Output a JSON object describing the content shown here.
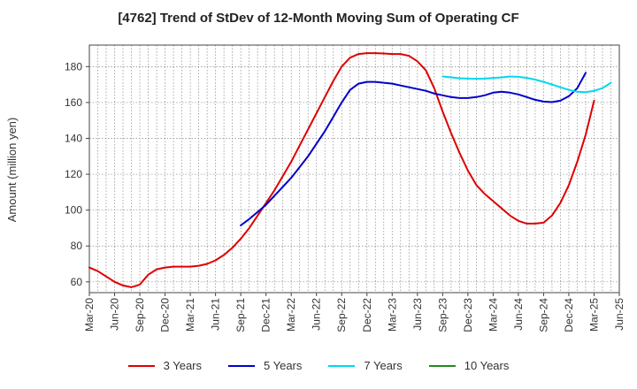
{
  "chart_data": {
    "type": "line",
    "title": "[4762]  Trend of StDev of 12-Month Moving Sum of Operating CF",
    "xlabel": "",
    "ylabel": "Amount (million yen)",
    "ylim": [
      54,
      192
    ],
    "yticks": [
      60,
      80,
      100,
      120,
      140,
      160,
      180
    ],
    "grid": true,
    "legend_position": "bottom",
    "x_tick_labels": [
      "Mar-20",
      "Jun-20",
      "Sep-20",
      "Dec-20",
      "Mar-21",
      "Jun-21",
      "Sep-21",
      "Dec-21",
      "Mar-22",
      "Jun-22",
      "Sep-22",
      "Dec-22",
      "Mar-23",
      "Jun-23",
      "Sep-23",
      "Dec-23",
      "Mar-24",
      "Jun-24",
      "Sep-24",
      "Dec-24",
      "Mar-25",
      "Jun-25"
    ],
    "series": [
      {
        "name": "3 Years",
        "color": "#dd0000",
        "start_index": 0,
        "values": [
          68,
          66,
          63,
          60,
          58,
          57,
          58.5,
          64,
          67,
          68,
          68.5,
          68.5,
          68.5,
          69,
          70,
          72,
          75,
          79,
          84,
          90,
          97,
          104,
          111,
          119,
          127,
          136,
          145,
          154,
          163,
          172,
          180,
          185,
          187,
          187.5,
          187.5,
          187.3,
          187,
          187,
          186,
          183,
          178,
          168,
          155,
          143,
          132,
          122,
          114,
          109,
          105,
          101,
          97,
          94,
          92.5,
          92.5,
          93,
          97,
          104,
          114,
          127,
          142,
          161
        ]
      },
      {
        "name": "5 Years",
        "color": "#0000cc",
        "start_index": 18,
        "values": [
          91.5,
          95,
          99,
          103,
          108,
          113,
          118,
          124,
          130,
          137,
          144,
          152,
          160,
          167,
          170.5,
          171.5,
          171.5,
          171,
          170.5,
          169.5,
          168.5,
          167.5,
          166.5,
          165,
          164,
          163,
          162.5,
          162.5,
          163,
          164,
          165.5,
          166,
          165.5,
          164.5,
          163,
          161.5,
          160.5,
          160.2,
          161,
          163.5,
          168,
          176.5
        ]
      },
      {
        "name": "7 Years",
        "color": "#00d8ee",
        "start_index": 42,
        "values": [
          174.5,
          174,
          173.5,
          173.3,
          173.2,
          173.3,
          173.6,
          174,
          174.5,
          174.3,
          173.7,
          172.8,
          171.5,
          170,
          168.5,
          167,
          166,
          165.8,
          166.5,
          168,
          171
        ]
      },
      {
        "name": "10 Years",
        "color": "#228822",
        "start_index": 0,
        "values": []
      }
    ]
  }
}
